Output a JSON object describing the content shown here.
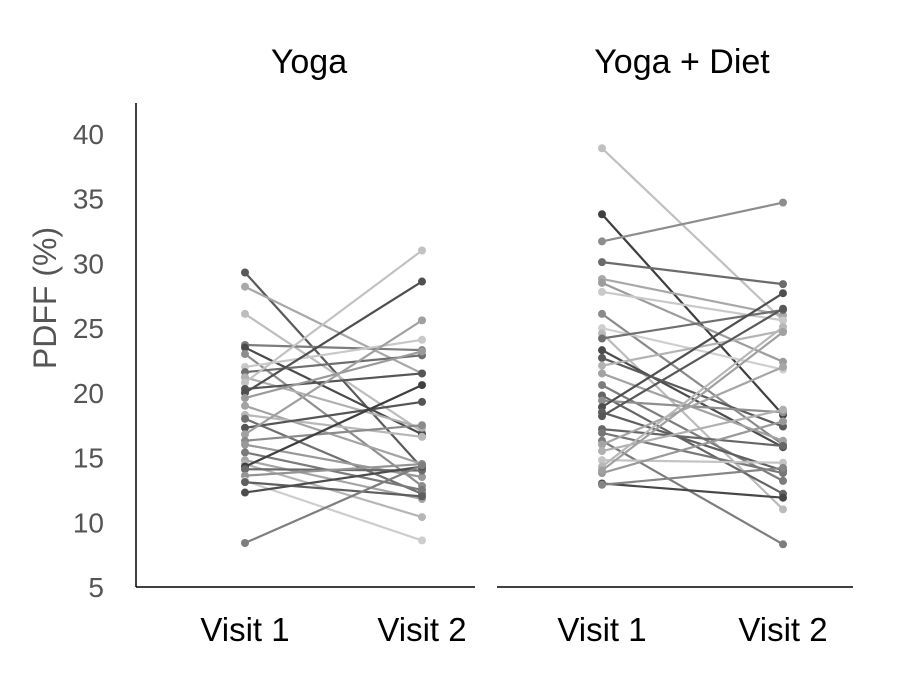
{
  "chart_data": {
    "type": "line",
    "ylabel": "PDFF (%)",
    "ylim": [
      5,
      40
    ],
    "yticks": [
      5,
      10,
      15,
      20,
      25,
      30,
      35,
      40
    ],
    "grid": false,
    "legend": "none",
    "panels": [
      {
        "title": "Yoga",
        "categories": [
          "Visit 1",
          "Visit 2"
        ],
        "pairs": [
          {
            "v1": 29.3,
            "v2": 14.2,
            "color": "#5a5a5a"
          },
          {
            "v1": 28.2,
            "v2": 21.5,
            "color": "#a8a8a8"
          },
          {
            "v1": 26.1,
            "v2": 17.0,
            "color": "#bdbdbd"
          },
          {
            "v1": 23.7,
            "v2": 23.3,
            "color": "#7d7d7d"
          },
          {
            "v1": 23.5,
            "v2": 16.8,
            "color": "#4a4a4a"
          },
          {
            "v1": 23.0,
            "v2": 12.8,
            "color": "#8e8e8e"
          },
          {
            "v1": 22.0,
            "v2": 24.1,
            "color": "#c8c8c8"
          },
          {
            "v1": 21.6,
            "v2": 22.9,
            "color": "#6e6e6e"
          },
          {
            "v1": 21.2,
            "v2": 17.3,
            "color": "#b0b0b0"
          },
          {
            "v1": 20.8,
            "v2": 31.0,
            "color": "#c2c2c2"
          },
          {
            "v1": 20.3,
            "v2": 21.5,
            "color": "#555555"
          },
          {
            "v1": 20.0,
            "v2": 28.6,
            "color": "#4f4f4f"
          },
          {
            "v1": 19.6,
            "v2": 23.2,
            "color": "#9a9a9a"
          },
          {
            "v1": 19.0,
            "v2": 14.5,
            "color": "#a3a3a3"
          },
          {
            "v1": 18.3,
            "v2": 16.6,
            "color": "#b8b8b8"
          },
          {
            "v1": 18.0,
            "v2": 12.2,
            "color": "#707070"
          },
          {
            "v1": 17.3,
            "v2": 19.3,
            "color": "#555555"
          },
          {
            "v1": 16.8,
            "v2": 25.6,
            "color": "#a0a0a0"
          },
          {
            "v1": 16.3,
            "v2": 17.5,
            "color": "#8a8a8a"
          },
          {
            "v1": 16.0,
            "v2": 13.5,
            "color": "#999999"
          },
          {
            "v1": 15.4,
            "v2": 12.5,
            "color": "#7a7a7a"
          },
          {
            "v1": 14.8,
            "v2": 11.8,
            "color": "#a6a6a6"
          },
          {
            "v1": 14.5,
            "v2": 10.4,
            "color": "#b5b5b5"
          },
          {
            "v1": 14.3,
            "v2": 20.6,
            "color": "#3f3f3f"
          },
          {
            "v1": 14.1,
            "v2": 14.0,
            "color": "#6a6a6a"
          },
          {
            "v1": 13.6,
            "v2": 14.5,
            "color": "#949494"
          },
          {
            "v1": 13.2,
            "v2": 8.6,
            "color": "#cdcdcd"
          },
          {
            "v1": 13.1,
            "v2": 12.0,
            "color": "#5e5e5e"
          },
          {
            "v1": 12.3,
            "v2": 14.3,
            "color": "#4d4d4d"
          },
          {
            "v1": 8.4,
            "v2": 14.4,
            "color": "#7e7e7e"
          }
        ]
      },
      {
        "title": "Yoga + Diet",
        "categories": [
          "Visit 1",
          "Visit 2"
        ],
        "pairs": [
          {
            "v1": 38.9,
            "v2": 25.6,
            "color": "#c0c0c0"
          },
          {
            "v1": 33.8,
            "v2": 18.3,
            "color": "#3f3f3f"
          },
          {
            "v1": 31.7,
            "v2": 34.7,
            "color": "#8d8d8d"
          },
          {
            "v1": 30.1,
            "v2": 28.4,
            "color": "#6b6b6b"
          },
          {
            "v1": 28.8,
            "v2": 26.0,
            "color": "#a8a8a8"
          },
          {
            "v1": 28.5,
            "v2": 22.4,
            "color": "#9c9c9c"
          },
          {
            "v1": 27.8,
            "v2": 25.6,
            "color": "#c9c9c9"
          },
          {
            "v1": 26.1,
            "v2": 16.0,
            "color": "#8a8a8a"
          },
          {
            "v1": 25.0,
            "v2": 21.8,
            "color": "#cfcfcf"
          },
          {
            "v1": 24.6,
            "v2": 11.0,
            "color": "#bbbbbb"
          },
          {
            "v1": 24.2,
            "v2": 26.4,
            "color": "#6f6f6f"
          },
          {
            "v1": 23.3,
            "v2": 15.8,
            "color": "#4b4b4b"
          },
          {
            "v1": 22.7,
            "v2": 17.4,
            "color": "#5b5b5b"
          },
          {
            "v1": 22.1,
            "v2": 24.8,
            "color": "#b3b3b3"
          },
          {
            "v1": 21.5,
            "v2": 16.3,
            "color": "#a2a2a2"
          },
          {
            "v1": 20.6,
            "v2": 13.2,
            "color": "#7c7c7c"
          },
          {
            "v1": 19.8,
            "v2": 12.2,
            "color": "#656565"
          },
          {
            "v1": 19.4,
            "v2": 18.5,
            "color": "#8f8f8f"
          },
          {
            "v1": 18.9,
            "v2": 27.7,
            "color": "#4e4e4e"
          },
          {
            "v1": 18.5,
            "v2": 14.0,
            "color": "#5f5f5f"
          },
          {
            "v1": 18.2,
            "v2": 26.5,
            "color": "#585858"
          },
          {
            "v1": 17.2,
            "v2": 15.9,
            "color": "#666666"
          },
          {
            "v1": 16.9,
            "v2": 13.8,
            "color": "#777777"
          },
          {
            "v1": 16.3,
            "v2": 8.3,
            "color": "#7d7d7d"
          },
          {
            "v1": 16.0,
            "v2": 22.0,
            "color": "#a5a5a5"
          },
          {
            "v1": 15.5,
            "v2": 18.7,
            "color": "#b0b0b0"
          },
          {
            "v1": 14.8,
            "v2": 14.6,
            "color": "#c4c4c4"
          },
          {
            "v1": 14.3,
            "v2": 25.1,
            "color": "#b8b8b8"
          },
          {
            "v1": 13.8,
            "v2": 17.8,
            "color": "#999999"
          },
          {
            "v1": 13.0,
            "v2": 11.9,
            "color": "#474747"
          },
          {
            "v1": 12.9,
            "v2": 14.2,
            "color": "#858585"
          },
          {
            "v1": 14.0,
            "v2": 24.7,
            "color": "#a0a0a0"
          }
        ]
      }
    ]
  }
}
